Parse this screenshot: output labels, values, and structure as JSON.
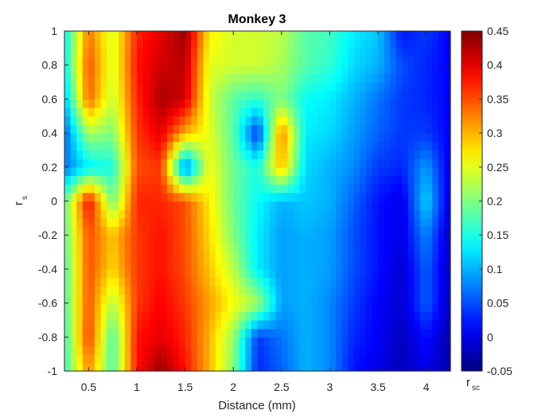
{
  "chart_data": {
    "type": "heatmap",
    "title": "Monkey 3",
    "xlabel": "Distance (mm)",
    "ylabel": {
      "main": "r",
      "sub": "s"
    },
    "xlim": [
      0.25,
      4.25
    ],
    "ylim": [
      -1,
      1
    ],
    "xticks": [
      0.5,
      1,
      1.5,
      2,
      2.5,
      3,
      3.5,
      4
    ],
    "yticks": [
      -1,
      -0.8,
      -0.6,
      -0.4,
      -0.2,
      0,
      0.2,
      0.4,
      0.6,
      0.8,
      1
    ],
    "xtick_labels": [
      "0.5",
      "1",
      "1.5",
      "2",
      "2.5",
      "3",
      "3.5",
      "4"
    ],
    "ytick_labels": [
      "-1",
      "-0.8",
      "-0.6",
      "-0.4",
      "-0.2",
      "0",
      "0.2",
      "0.4",
      "0.6",
      "0.8",
      "1"
    ],
    "colormap": "jet",
    "clim": [
      -0.05,
      0.45
    ],
    "colorbar": {
      "ticks": [
        -0.05,
        0,
        0.05,
        0.1,
        0.15,
        0.2,
        0.25,
        0.3,
        0.35,
        0.4,
        0.45
      ],
      "tick_labels": [
        "-0.05",
        "0",
        "0.05",
        "0.1",
        "0.15",
        "0.2",
        "0.25",
        "0.3",
        "0.35",
        "0.4",
        "0.45"
      ],
      "label": {
        "main": "r",
        "sub": "sc"
      }
    },
    "x": [
      0.25,
      0.5,
      0.75,
      1.0,
      1.25,
      1.5,
      1.75,
      2.0,
      2.25,
      2.5,
      2.75,
      3.0,
      3.25,
      3.5,
      3.75,
      4.0,
      4.25
    ],
    "y": [
      -1,
      -0.8,
      -0.6,
      -0.4,
      -0.2,
      0,
      0.2,
      0.4,
      0.6,
      0.8,
      1
    ],
    "z": [
      [
        0.16,
        0.32,
        0.17,
        0.38,
        0.44,
        0.38,
        0.3,
        0.2,
        0.03,
        0.06,
        0.1,
        0.08,
        0.02,
        0.0,
        -0.02,
        0.0,
        -0.03
      ],
      [
        0.16,
        0.36,
        0.17,
        0.38,
        0.4,
        0.37,
        0.3,
        0.21,
        0.04,
        0.07,
        0.1,
        0.08,
        0.03,
        0.01,
        -0.02,
        0.02,
        -0.03
      ],
      [
        0.17,
        0.35,
        0.22,
        0.36,
        0.39,
        0.36,
        0.31,
        0.26,
        0.22,
        0.09,
        0.1,
        0.08,
        0.04,
        0.01,
        -0.01,
        0.06,
        -0.02
      ],
      [
        0.17,
        0.35,
        0.28,
        0.36,
        0.38,
        0.35,
        0.29,
        0.23,
        0.13,
        0.09,
        0.1,
        0.09,
        0.05,
        0.02,
        -0.01,
        0.06,
        -0.02
      ],
      [
        0.18,
        0.35,
        0.29,
        0.36,
        0.38,
        0.35,
        0.28,
        0.2,
        0.13,
        0.09,
        0.1,
        0.09,
        0.05,
        0.02,
        0.0,
        0.08,
        -0.02
      ],
      [
        0.18,
        0.39,
        0.19,
        0.37,
        0.37,
        0.35,
        0.27,
        0.19,
        0.14,
        0.1,
        0.11,
        0.1,
        0.06,
        0.02,
        0.0,
        0.12,
        -0.01
      ],
      [
        0.07,
        0.13,
        0.15,
        0.35,
        0.36,
        0.06,
        0.26,
        0.19,
        0.15,
        0.3,
        0.12,
        0.1,
        0.08,
        0.04,
        0.03,
        0.09,
        0.0
      ],
      [
        0.06,
        0.22,
        0.2,
        0.36,
        0.4,
        0.3,
        0.25,
        0.18,
        0.03,
        0.33,
        0.13,
        0.12,
        0.09,
        0.06,
        0.04,
        0.04,
        0.01
      ],
      [
        0.1,
        0.34,
        0.23,
        0.37,
        0.43,
        0.41,
        0.24,
        0.18,
        0.16,
        0.2,
        0.14,
        0.13,
        0.1,
        0.07,
        0.04,
        0.03,
        0.01
      ],
      [
        0.13,
        0.35,
        0.24,
        0.38,
        0.41,
        0.42,
        0.25,
        0.24,
        0.24,
        0.22,
        0.18,
        0.16,
        0.12,
        0.1,
        0.05,
        0.03,
        0.01
      ],
      [
        0.13,
        0.33,
        0.24,
        0.37,
        0.4,
        0.44,
        0.27,
        0.24,
        0.24,
        0.23,
        0.18,
        0.17,
        0.13,
        0.11,
        0.02,
        0.04,
        0.01
      ]
    ]
  }
}
